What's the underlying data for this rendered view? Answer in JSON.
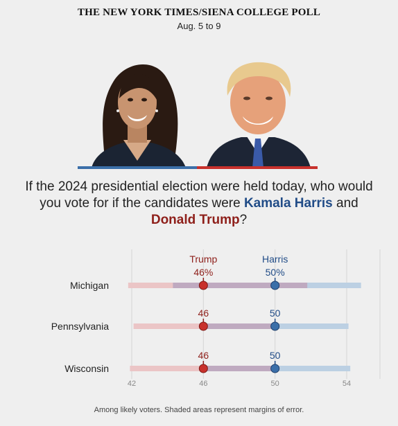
{
  "header": {
    "title": "THE NEW YORK TIMES/SIENA COLLEGE POLL",
    "date": "Aug. 5 to 9"
  },
  "question": {
    "part1": "If the 2024 presidential election were held today, who would you vote for if the candidates were ",
    "harris_name": "Kamala Harris",
    "part2": " and ",
    "trump_name": "Donald Trump",
    "part3": "?"
  },
  "colors": {
    "harris": "#3b6fa9",
    "harris_text": "#214c87",
    "trump": "#c8312c",
    "trump_text": "#8e1f1a",
    "harris_band": "#bcd0e3",
    "trump_band": "#ebc5c6",
    "overlap_band": "#bfaac0"
  },
  "chart_data": {
    "type": "dot",
    "candidates": [
      {
        "name": "Trump",
        "color": "#c8312c"
      },
      {
        "name": "Harris",
        "color": "#3b6fa9"
      }
    ],
    "first_row_suffix": "%",
    "rows": [
      {
        "state": "Michigan",
        "trump": 46,
        "harris": 50,
        "trump_range": [
          41.8,
          51.8
        ],
        "harris_range": [
          44.3,
          54.8
        ]
      },
      {
        "state": "Pennsylvania",
        "trump": 46,
        "harris": 50,
        "trump_range": [
          42.1,
          50.1
        ],
        "harris_range": [
          45.9,
          54.1
        ]
      },
      {
        "state": "Wisconsin",
        "trump": 46,
        "harris": 50,
        "trump_range": [
          41.9,
          50.2
        ],
        "harris_range": [
          45.8,
          54.2
        ]
      }
    ],
    "x_ticks": [
      42,
      46,
      50,
      54
    ],
    "xlim": [
      38,
      56
    ],
    "grid": true
  },
  "footnote": "Among likely voters. Shaded areas represent margins of error."
}
